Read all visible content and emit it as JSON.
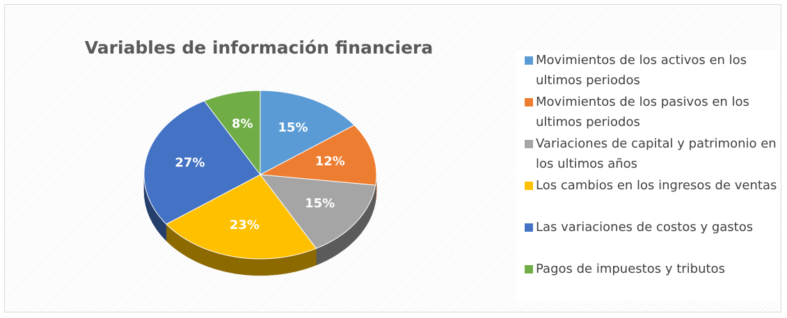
{
  "chart_data": {
    "type": "pie",
    "title": "Variables de información financiera",
    "categories": [
      "Movimientos de los activos en los ultimos periodos",
      "Movimientos de los pasivos en los ultimos periodos",
      "Variaciones de capital y patrimonio en los ultimos años",
      "Los cambios en los ingresos de ventas",
      "Las variaciones de costos y gastos",
      "Pagos de impuestos y tributos"
    ],
    "values": [
      15,
      12,
      15,
      23,
      27,
      8
    ],
    "value_labels": [
      "15%",
      "12%",
      "15%",
      "23%",
      "27%",
      "8%"
    ],
    "colors": [
      "#5b9bd5",
      "#ed7d31",
      "#a5a5a5",
      "#ffc000",
      "#4472c4",
      "#70ad47"
    ],
    "legend": "right"
  }
}
